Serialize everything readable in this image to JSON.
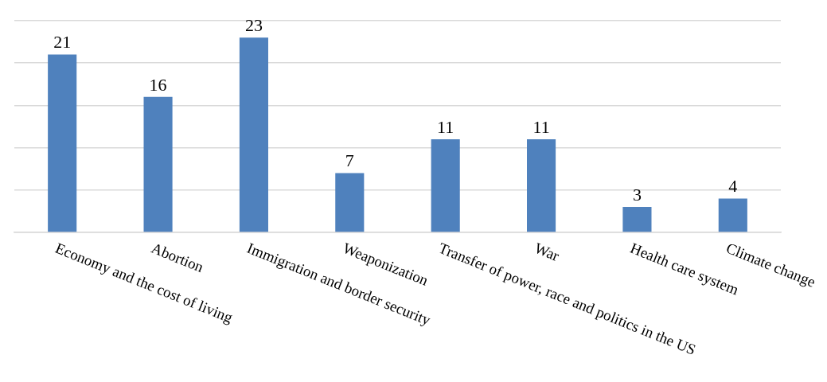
{
  "chart_data": {
    "type": "bar",
    "categories": [
      "Economy and the cost of living",
      "Abortion",
      "Immigration and border security",
      "Weaponization",
      "Transfer of power, race and politics in the US",
      "War",
      "Health care system",
      "Climate change"
    ],
    "values": [
      21,
      16,
      23,
      7,
      11,
      11,
      3,
      4
    ],
    "color": "#4f81bd",
    "ylim": [
      0,
      25
    ],
    "yticks": [
      {
        "value": 0,
        "label": null
      },
      {
        "value": 5,
        "label": null
      },
      {
        "value": 10,
        "label": null
      },
      {
        "value": 15,
        "label": null
      },
      {
        "value": 20,
        "label": null
      },
      {
        "value": 25,
        "label": null
      }
    ],
    "tick_labels": "x",
    "grid": "y",
    "legend": false,
    "data_labels": true
  }
}
